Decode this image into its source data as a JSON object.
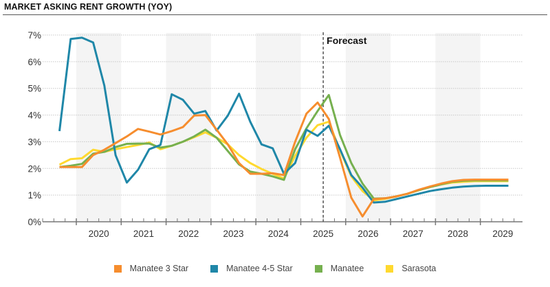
{
  "header": {
    "title": "MARKET ASKING RENT GROWTH (YOY)"
  },
  "chart_data": {
    "type": "line",
    "title": "MARKET ASKING RENT GROWTH (YOY)",
    "xlabel": "",
    "ylabel": "",
    "ylim": [
      0,
      7
    ],
    "yticks": [
      0,
      1,
      2,
      3,
      4,
      5,
      6,
      7
    ],
    "ytick_labels": [
      "0%",
      "1%",
      "2%",
      "3%",
      "4%",
      "5%",
      "6%",
      "7%"
    ],
    "xtick_labels": [
      "2020",
      "2021",
      "2022",
      "2023",
      "2024",
      "2025",
      "2026",
      "2027",
      "2028",
      "2029"
    ],
    "x_start": "2019 Q3",
    "x_end": "2029 Q3",
    "x_frequency": "quarterly",
    "x": [
      "2019 Q3",
      "2019 Q4",
      "2020 Q1",
      "2020 Q2",
      "2020 Q3",
      "2020 Q4",
      "2021 Q1",
      "2021 Q2",
      "2021 Q3",
      "2021 Q4",
      "2022 Q1",
      "2022 Q2",
      "2022 Q3",
      "2022 Q4",
      "2023 Q1",
      "2023 Q2",
      "2023 Q3",
      "2023 Q4",
      "2024 Q1",
      "2024 Q2",
      "2024 Q3",
      "2024 Q4",
      "2025 Q1",
      "2025 Q2",
      "2025 Q3",
      "2025 Q4",
      "2026 Q1",
      "2026 Q2",
      "2026 Q3",
      "2026 Q4",
      "2027 Q1",
      "2027 Q2",
      "2027 Q3",
      "2027 Q4",
      "2028 Q1",
      "2028 Q2",
      "2028 Q3",
      "2028 Q4",
      "2029 Q1",
      "2029 Q2",
      "2029 Q3"
    ],
    "grid": true,
    "shaded_years": [
      "2020",
      "2022",
      "2024",
      "2026",
      "2028"
    ],
    "annotation": {
      "text": "Forecast",
      "at": "2025 mid-year"
    },
    "legend_position": "bottom",
    "series": [
      {
        "name": "Manatee 3 Star",
        "color": "#F68D2E",
        "values": [
          2.05,
          2.05,
          2.05,
          2.5,
          2.7,
          2.95,
          3.2,
          3.48,
          3.38,
          3.27,
          3.4,
          3.55,
          3.98,
          4.0,
          3.45,
          2.9,
          2.2,
          1.8,
          1.8,
          1.82,
          1.75,
          3.0,
          4.05,
          4.47,
          3.85,
          2.4,
          0.9,
          0.2,
          0.85,
          0.88,
          0.95,
          1.05,
          1.2,
          1.32,
          1.43,
          1.52,
          1.57,
          1.58,
          1.58,
          1.58,
          1.58
        ]
      },
      {
        "name": "Manatee 4-5 Star",
        "color": "#1F87A8",
        "values": [
          3.4,
          6.85,
          6.9,
          6.72,
          5.1,
          2.5,
          1.47,
          1.95,
          2.72,
          2.88,
          4.78,
          4.57,
          4.05,
          4.15,
          3.42,
          3.98,
          4.8,
          3.75,
          2.9,
          2.75,
          1.8,
          2.2,
          3.45,
          3.22,
          3.6,
          2.72,
          1.75,
          1.28,
          0.72,
          0.75,
          0.85,
          0.95,
          1.05,
          1.15,
          1.22,
          1.28,
          1.32,
          1.34,
          1.35,
          1.35,
          1.35
        ]
      },
      {
        "name": "Manatee",
        "color": "#76B04F",
        "values": [
          2.05,
          2.1,
          2.17,
          2.55,
          2.62,
          2.8,
          2.92,
          2.93,
          2.93,
          2.78,
          2.85,
          3.0,
          3.2,
          3.45,
          3.15,
          2.65,
          2.15,
          1.88,
          1.8,
          1.7,
          1.57,
          2.72,
          3.5,
          4.15,
          4.75,
          3.25,
          2.2,
          1.43,
          0.87,
          0.88,
          0.95,
          1.05,
          1.18,
          1.3,
          1.4,
          1.5,
          1.54,
          1.55,
          1.55,
          1.55,
          1.55
        ]
      },
      {
        "name": "Sarasota",
        "color": "#FFD92F",
        "values": [
          2.14,
          2.35,
          2.38,
          2.7,
          2.62,
          2.72,
          2.8,
          2.88,
          2.97,
          2.72,
          2.85,
          3.0,
          3.17,
          3.35,
          3.15,
          2.9,
          2.5,
          2.2,
          1.98,
          1.8,
          1.62,
          2.47,
          3.15,
          3.62,
          3.75,
          2.67,
          1.7,
          1.15,
          0.8,
          0.86,
          0.95,
          1.05,
          1.18,
          1.3,
          1.4,
          1.47,
          1.5,
          1.52,
          1.52,
          1.52,
          1.52
        ]
      }
    ]
  }
}
